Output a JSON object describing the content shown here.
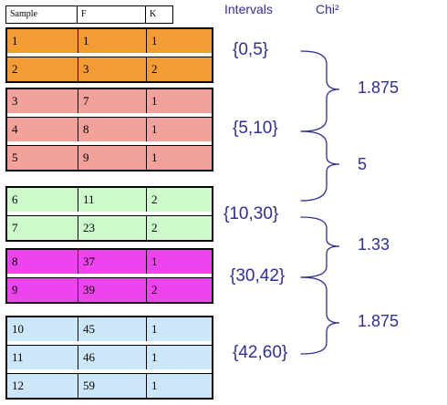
{
  "headers": {
    "sample": "Sample",
    "f": "F",
    "k": "K",
    "intervals": "Intervals",
    "chi": "Chi²"
  },
  "groups": [
    {
      "color": "#f39c33",
      "rows": [
        {
          "sample": "1",
          "f": "1",
          "k": "1"
        },
        {
          "sample": "2",
          "f": "3",
          "k": "2"
        }
      ]
    },
    {
      "color": "#f2a19b",
      "rows": [
        {
          "sample": "3",
          "f": "7",
          "k": "1"
        },
        {
          "sample": "4",
          "f": "8",
          "k": "1"
        },
        {
          "sample": "5",
          "f": "9",
          "k": "1"
        }
      ]
    },
    {
      "color": "#ccfccc",
      "rows": [
        {
          "sample": "6",
          "f": "11",
          "k": "2"
        },
        {
          "sample": "7",
          "f": "23",
          "k": "2"
        }
      ]
    },
    {
      "color": "#ee44ee",
      "rows": [
        {
          "sample": "8",
          "f": "37",
          "k": "1"
        },
        {
          "sample": "9",
          "f": "39",
          "k": "2"
        }
      ]
    },
    {
      "color": "#cce7fa",
      "rows": [
        {
          "sample": "10",
          "f": "45",
          "k": "1"
        },
        {
          "sample": "11",
          "f": "46",
          "k": "1"
        },
        {
          "sample": "12",
          "f": "59",
          "k": "1"
        }
      ]
    }
  ],
  "intervals": [
    "{0,5}",
    "{5,10}",
    "{10,30}",
    "{30,42}",
    "{42,60}"
  ],
  "chi_values": [
    "1.875",
    "5",
    "1.33",
    "1.875"
  ],
  "text_color": "#2e2e9a"
}
